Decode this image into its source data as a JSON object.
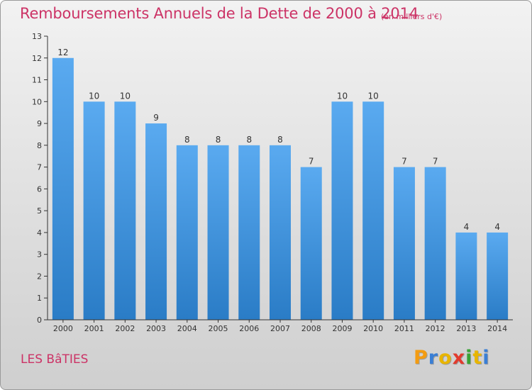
{
  "chart_data": {
    "type": "bar",
    "title": "Remboursements Annuels de la Dette de 2000 à 2014",
    "subtitle": "(en milliers d'€)",
    "categories": [
      "2000",
      "2001",
      "2002",
      "2003",
      "2004",
      "2005",
      "2006",
      "2007",
      "2008",
      "2009",
      "2010",
      "2011",
      "2012",
      "2013",
      "2014"
    ],
    "values": [
      12,
      10,
      10,
      9,
      8,
      8,
      8,
      8,
      7,
      10,
      10,
      7,
      7,
      4,
      4
    ],
    "ylim": [
      0,
      13
    ],
    "yticks": [
      0,
      1,
      2,
      3,
      4,
      5,
      6,
      7,
      8,
      9,
      10,
      11,
      12,
      13
    ],
    "xlabel": "",
    "ylabel": "",
    "bar_color": "#3d8fd6",
    "grid": false
  },
  "footer": {
    "commune": "LES BâTIES"
  },
  "logo": {
    "letters": [
      "P",
      "r",
      "o",
      "x",
      "i",
      "t",
      "i"
    ],
    "colors": [
      "#f39c12",
      "#3a7fd5",
      "#e8b500",
      "#e23b2e",
      "#3aa335",
      "#e8b500",
      "#3a7fd5"
    ]
  },
  "colors": {
    "title": "#cc3366",
    "axis": "#333333",
    "label": "#333333"
  }
}
